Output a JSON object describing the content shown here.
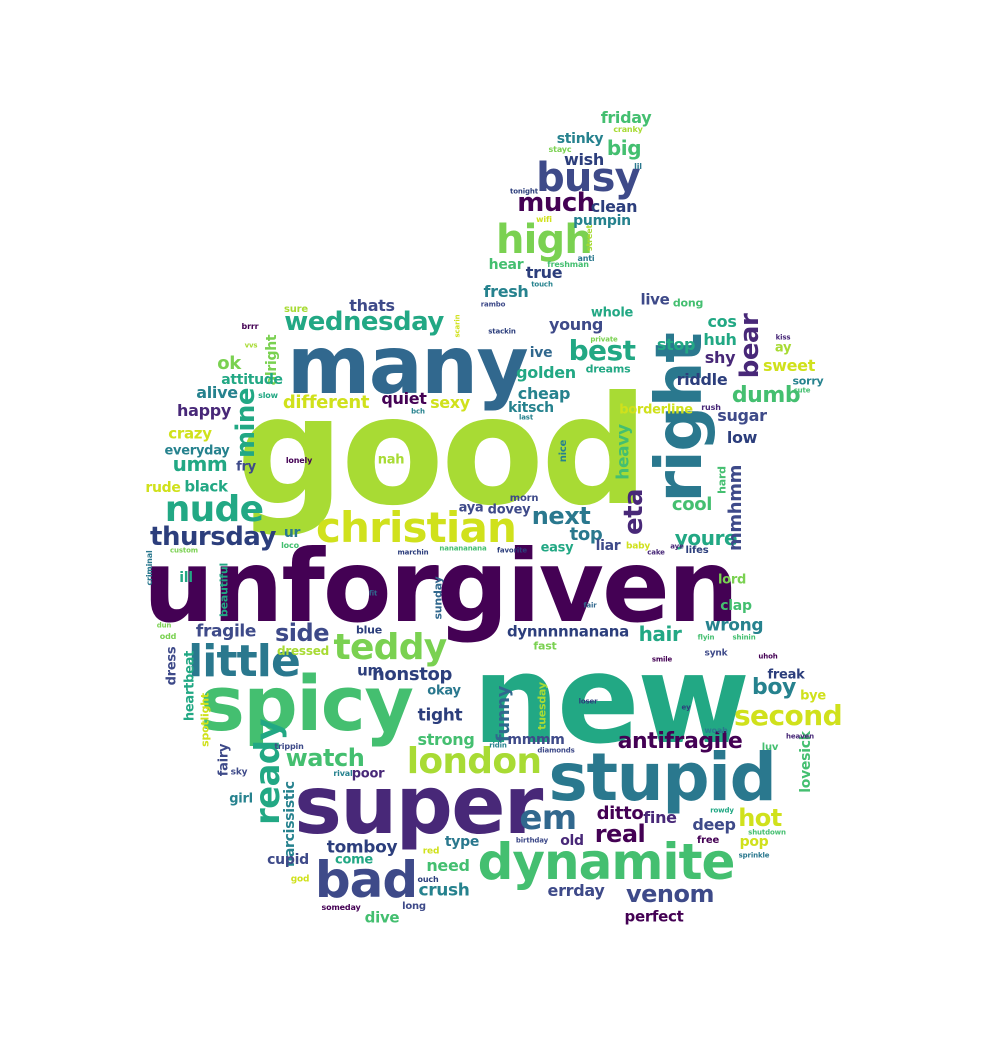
{
  "wordcloud": {
    "words": [
      {
        "text": "good",
        "color": "#a8db34"
      },
      {
        "text": "unforgiven",
        "color": "#440154"
      },
      {
        "text": "new",
        "color": "#22a884"
      },
      {
        "text": "many",
        "color": "#31688e"
      },
      {
        "text": "right",
        "color": "#2a788e"
      },
      {
        "text": "super",
        "color": "#482878"
      },
      {
        "text": "spicy",
        "color": "#44bf70"
      },
      {
        "text": "stupid",
        "color": "#2a788e"
      },
      {
        "text": "dynamite",
        "color": "#44bf70"
      },
      {
        "text": "bad",
        "color": "#3e4a89"
      },
      {
        "text": "christian",
        "color": "#d0e11c"
      },
      {
        "text": "busy",
        "color": "#3e4a89"
      },
      {
        "text": "high",
        "color": "#7ad151"
      },
      {
        "text": "london",
        "color": "#a8db34"
      },
      {
        "text": "little",
        "color": "#2a788e"
      },
      {
        "text": "teddy",
        "color": "#7ad151"
      },
      {
        "text": "nude",
        "color": "#22a884"
      },
      {
        "text": "ready",
        "color": "#22a884"
      },
      {
        "text": "em",
        "color": "#31688e"
      },
      {
        "text": "wednesday",
        "color": "#22a884"
      },
      {
        "text": "second",
        "color": "#d0e11c"
      },
      {
        "text": "venom",
        "color": "#3e4a89"
      },
      {
        "text": "thursday",
        "color": "#2c3e7c"
      },
      {
        "text": "best",
        "color": "#22a884"
      },
      {
        "text": "eta",
        "color": "#482878"
      },
      {
        "text": "much",
        "color": "#440154"
      },
      {
        "text": "bear",
        "color": "#482878"
      },
      {
        "text": "antifragile",
        "color": "#440154"
      },
      {
        "text": "next",
        "color": "#2a788e"
      },
      {
        "text": "mine",
        "color": "#22a884"
      },
      {
        "text": "side",
        "color": "#3e4a89"
      },
      {
        "text": "watch",
        "color": "#44bf70"
      },
      {
        "text": "real",
        "color": "#440154"
      },
      {
        "text": "hot",
        "color": "#d0e11c"
      },
      {
        "text": "youre",
        "color": "#22a884"
      },
      {
        "text": "boy",
        "color": "#26828e"
      },
      {
        "text": "funny",
        "color": "#31688e"
      },
      {
        "text": "dumb",
        "color": "#44bf70"
      },
      {
        "text": "nonstop",
        "color": "#2c3e7c"
      },
      {
        "text": "mmhmm",
        "color": "#3e4a89"
      },
      {
        "text": "umm",
        "color": "#22a884"
      },
      {
        "text": "hair",
        "color": "#22a884"
      },
      {
        "text": "top",
        "color": "#2a788e"
      },
      {
        "text": "heavy",
        "color": "#44bf70"
      },
      {
        "text": "wrong",
        "color": "#26828e"
      },
      {
        "text": "ditto",
        "color": "#440154"
      },
      {
        "text": "cool",
        "color": "#44bf70"
      },
      {
        "text": "tight",
        "color": "#2c3e7c"
      },
      {
        "text": "different",
        "color": "#d0e11c"
      },
      {
        "text": "fragile",
        "color": "#3e4a89"
      },
      {
        "text": "crush",
        "color": "#26828e"
      },
      {
        "text": "narcissistic",
        "color": "#26828e"
      },
      {
        "text": "lovesick",
        "color": "#44bf70"
      },
      {
        "text": "tomboy",
        "color": "#2c3e7c"
      },
      {
        "text": "deep",
        "color": "#3e4a89"
      },
      {
        "text": "errday",
        "color": "#3e4a89"
      },
      {
        "text": "fine",
        "color": "#482878"
      },
      {
        "text": "strong",
        "color": "#44bf70"
      },
      {
        "text": "friday",
        "color": "#44bf70"
      },
      {
        "text": "big",
        "color": "#44bf70"
      },
      {
        "text": "wish",
        "color": "#2c3e7c"
      },
      {
        "text": "clean",
        "color": "#2c3e7c"
      },
      {
        "text": "pumpin",
        "color": "#26828e"
      },
      {
        "text": "stinky",
        "color": "#26828e"
      },
      {
        "text": "cranky",
        "color": "#a8db34"
      },
      {
        "text": "stayc",
        "color": "#7ad151"
      },
      {
        "text": "lil",
        "color": "#2a788e"
      },
      {
        "text": "tonight",
        "color": "#2c3e7c"
      },
      {
        "text": "wifi",
        "color": "#d0e11c"
      },
      {
        "text": "street",
        "color": "#a8db34"
      },
      {
        "text": "anti",
        "color": "#2a788e"
      },
      {
        "text": "freshman",
        "color": "#44bf70"
      },
      {
        "text": "hear",
        "color": "#44bf70"
      },
      {
        "text": "true",
        "color": "#2c3e7c"
      },
      {
        "text": "touch",
        "color": "#26828e"
      },
      {
        "text": "fresh",
        "color": "#26828e"
      },
      {
        "text": "rambo",
        "color": "#3e4a89"
      },
      {
        "text": "stackin",
        "color": "#2c3e7c"
      },
      {
        "text": "scarin",
        "color": "#d0e11c"
      },
      {
        "text": "sure",
        "color": "#a8db34"
      },
      {
        "text": "thats",
        "color": "#3e4a89"
      },
      {
        "text": "live",
        "color": "#3e4a89"
      },
      {
        "text": "dong",
        "color": "#44bf70"
      },
      {
        "text": "young",
        "color": "#3e4a89"
      },
      {
        "text": "whole",
        "color": "#22a884"
      },
      {
        "text": "cos",
        "color": "#22a884"
      },
      {
        "text": "kiss",
        "color": "#482878"
      },
      {
        "text": "ay",
        "color": "#a8db34"
      },
      {
        "text": "huh",
        "color": "#22a884"
      },
      {
        "text": "stop",
        "color": "#22a884"
      },
      {
        "text": "private",
        "color": "#7ad151"
      },
      {
        "text": "ive",
        "color": "#31688e"
      },
      {
        "text": "shy",
        "color": "#482878"
      },
      {
        "text": "sweet",
        "color": "#d0e11c"
      },
      {
        "text": "sorry",
        "color": "#26828e"
      },
      {
        "text": "cute",
        "color": "#44bf70"
      },
      {
        "text": "brrr",
        "color": "#440154"
      },
      {
        "text": "vvs",
        "color": "#a8db34"
      },
      {
        "text": "alright",
        "color": "#7ad151"
      },
      {
        "text": "ok",
        "color": "#7ad151"
      },
      {
        "text": "attitude",
        "color": "#22a884"
      },
      {
        "text": "alive",
        "color": "#26828e"
      },
      {
        "text": "slow",
        "color": "#22a884"
      },
      {
        "text": "golden",
        "color": "#22a884"
      },
      {
        "text": "dreams",
        "color": "#22a884"
      },
      {
        "text": "riddle",
        "color": "#2c3e7c"
      },
      {
        "text": "cheap",
        "color": "#26828e"
      },
      {
        "text": "quiet",
        "color": "#440154"
      },
      {
        "text": "sexy",
        "color": "#d0e11c"
      },
      {
        "text": "kitsch",
        "color": "#26828e"
      },
      {
        "text": "bch",
        "color": "#26828e"
      },
      {
        "text": "last",
        "color": "#26828e"
      },
      {
        "text": "borderline",
        "color": "#d0e11c"
      },
      {
        "text": "rush",
        "color": "#482878"
      },
      {
        "text": "sugar",
        "color": "#3e4a89"
      },
      {
        "text": "happy",
        "color": "#482878"
      },
      {
        "text": "crazy",
        "color": "#d0e11c"
      },
      {
        "text": "everyday",
        "color": "#26828e"
      },
      {
        "text": "fry",
        "color": "#3e4a89"
      },
      {
        "text": "lonely",
        "color": "#440154"
      },
      {
        "text": "nah",
        "color": "#a8db34"
      },
      {
        "text": "nice",
        "color": "#26828e"
      },
      {
        "text": "low",
        "color": "#2c3e7c"
      },
      {
        "text": "rude",
        "color": "#d0e11c"
      },
      {
        "text": "black",
        "color": "#22a884"
      },
      {
        "text": "aya",
        "color": "#3e4a89"
      },
      {
        "text": "morn",
        "color": "#3e4a89"
      },
      {
        "text": "dovey",
        "color": "#3e4a89"
      },
      {
        "text": "hard",
        "color": "#44bf70"
      },
      {
        "text": "ur",
        "color": "#2a788e"
      },
      {
        "text": "loco",
        "color": "#44bf70"
      },
      {
        "text": "marchin",
        "color": "#2c3e7c"
      },
      {
        "text": "nanananana",
        "color": "#44bf70"
      },
      {
        "text": "favorite",
        "color": "#2c3e7c"
      },
      {
        "text": "easy",
        "color": "#22a884"
      },
      {
        "text": "liar",
        "color": "#3e4a89"
      },
      {
        "text": "baby",
        "color": "#d0e11c"
      },
      {
        "text": "cake",
        "color": "#482878"
      },
      {
        "text": "aye",
        "color": "#482878"
      },
      {
        "text": "lifes",
        "color": "#2c3e7c"
      },
      {
        "text": "custom",
        "color": "#7ad151"
      },
      {
        "text": "criminal",
        "color": "#2a788e"
      },
      {
        "text": "ill",
        "color": "#22a884"
      },
      {
        "text": "beautiful",
        "color": "#22a884"
      },
      {
        "text": "fit",
        "color": "#31688e"
      },
      {
        "text": "sunday",
        "color": "#31688e"
      },
      {
        "text": "fair",
        "color": "#31688e"
      },
      {
        "text": "lord",
        "color": "#7ad151"
      },
      {
        "text": "clap",
        "color": "#44bf70"
      },
      {
        "text": "dun",
        "color": "#7ad151"
      },
      {
        "text": "odd",
        "color": "#7ad151"
      },
      {
        "text": "blue",
        "color": "#2c3e7c"
      },
      {
        "text": "dynnnnnanana",
        "color": "#2c3e7c"
      },
      {
        "text": "flyin",
        "color": "#44bf70"
      },
      {
        "text": "shinin",
        "color": "#44bf70"
      },
      {
        "text": "dress",
        "color": "#3e4a89"
      },
      {
        "text": "heartbeat",
        "color": "#22a884"
      },
      {
        "text": "dressed",
        "color": "#a8db34"
      },
      {
        "text": "um",
        "color": "#2c3e7c"
      },
      {
        "text": "fast",
        "color": "#7ad151"
      },
      {
        "text": "smile",
        "color": "#440154"
      },
      {
        "text": "synk",
        "color": "#3e4a89"
      },
      {
        "text": "uhoh",
        "color": "#440154"
      },
      {
        "text": "freak",
        "color": "#2c3e7c"
      },
      {
        "text": "bye",
        "color": "#d0e11c"
      },
      {
        "text": "spotlight",
        "color": "#d0e11c"
      },
      {
        "text": "okay",
        "color": "#2a788e"
      },
      {
        "text": "tuesday",
        "color": "#a8db34"
      },
      {
        "text": "loser",
        "color": "#2c3e7c"
      },
      {
        "text": "ey",
        "color": "#2c3e7c"
      },
      {
        "text": "woah",
        "color": "#2a788e"
      },
      {
        "text": "heaven",
        "color": "#482878"
      },
      {
        "text": "fairy",
        "color": "#3e4a89"
      },
      {
        "text": "trippin",
        "color": "#3e4a89"
      },
      {
        "text": "ridin",
        "color": "#26828e"
      },
      {
        "text": "mmmm",
        "color": "#3e4a89"
      },
      {
        "text": "diamonds",
        "color": "#3e4a89"
      },
      {
        "text": "luv",
        "color": "#44bf70"
      },
      {
        "text": "sky",
        "color": "#3e4a89"
      },
      {
        "text": "rival",
        "color": "#26828e"
      },
      {
        "text": "poor",
        "color": "#482878"
      },
      {
        "text": "girl",
        "color": "#26828e"
      },
      {
        "text": "old",
        "color": "#482878"
      },
      {
        "text": "type",
        "color": "#2a788e"
      },
      {
        "text": "rowdy",
        "color": "#22a884"
      },
      {
        "text": "pop",
        "color": "#d0e11c"
      },
      {
        "text": "shutdown",
        "color": "#44bf70"
      },
      {
        "text": "birthday",
        "color": "#3e4a89"
      },
      {
        "text": "free",
        "color": "#440154"
      },
      {
        "text": "sprinkle",
        "color": "#2a788e"
      },
      {
        "text": "cupid",
        "color": "#3e4a89"
      },
      {
        "text": "come",
        "color": "#22a884"
      },
      {
        "text": "red",
        "color": "#d0e11c"
      },
      {
        "text": "need",
        "color": "#44bf70"
      },
      {
        "text": "ouch",
        "color": "#2c3e7c"
      },
      {
        "text": "god",
        "color": "#d0e11c"
      },
      {
        "text": "someday",
        "color": "#440154"
      },
      {
        "text": "long",
        "color": "#3e4a89"
      },
      {
        "text": "dive",
        "color": "#44bf70"
      },
      {
        "text": "perfect",
        "color": "#440154"
      }
    ]
  }
}
